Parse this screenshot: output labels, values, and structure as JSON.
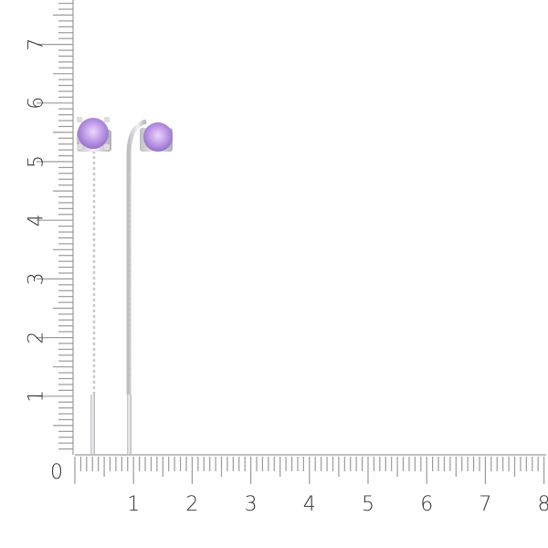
{
  "ruler": {
    "origin_label": "0",
    "x_labels": [
      "1",
      "2",
      "3",
      "4",
      "5",
      "6",
      "7",
      "8"
    ],
    "y_labels": [
      "1",
      "2",
      "3",
      "4",
      "5",
      "6",
      "7"
    ],
    "tick_color": "#9a9a9a"
  },
  "product": {
    "stone_color": "#b58ee0",
    "metal_color": "#d6d6d8"
  }
}
